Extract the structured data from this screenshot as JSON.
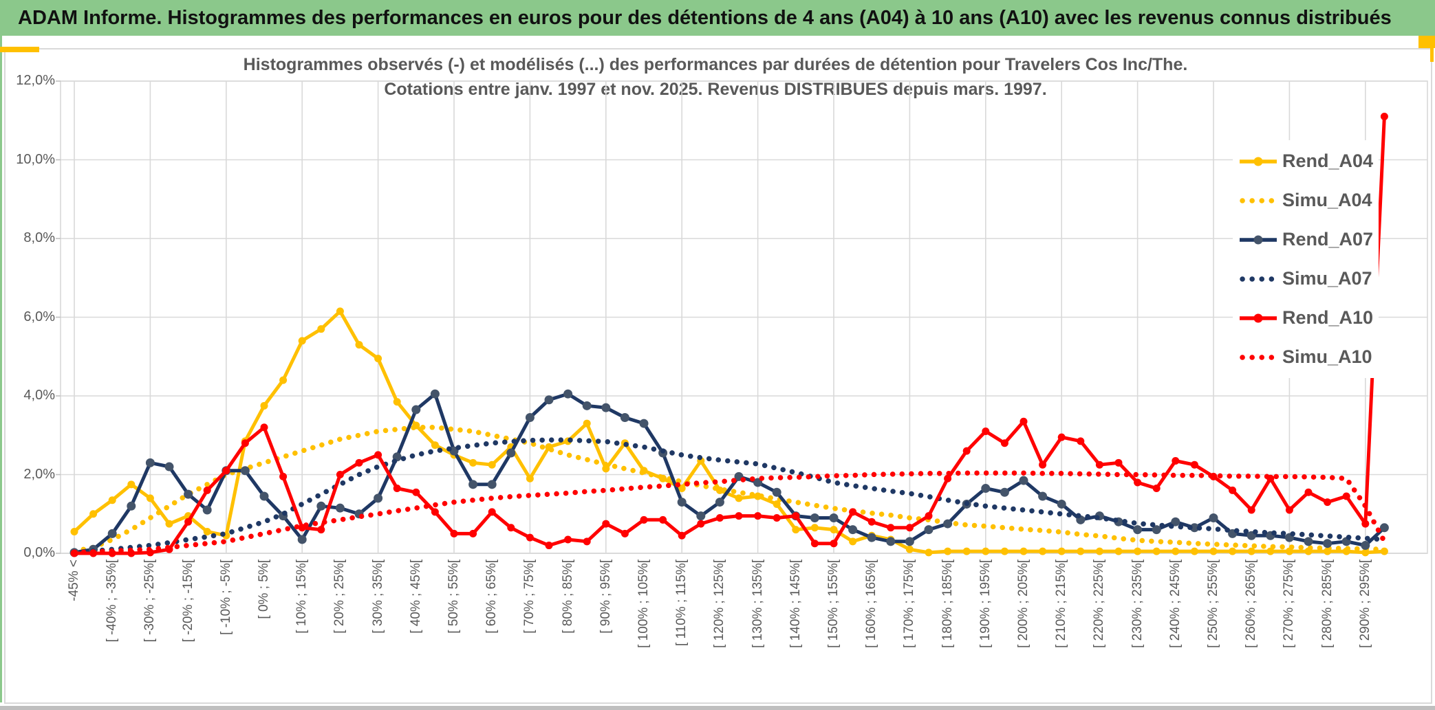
{
  "window": {
    "header_title": "ADAM Informe. Histogrammes des performances en euros pour des détentions de 4 ans (A04) à 10 ans (A10) avec les revenus connus distribués"
  },
  "theme": {
    "header_bg": "#8BC88B",
    "accent_gold": "#FFC000",
    "text_gray": "#595959",
    "grid_color": "#D9D9D9",
    "axis_color": "#BFBFBF",
    "legend_bg": "#FFFFFF"
  },
  "chart_data": {
    "type": "line",
    "title_line1": "Histogrammes observés (-) et modélisés (...) des performances par durées de détention pour Travelers Cos Inc/The.",
    "title_line2": "Cotations entre janv. 1997 et nov. 2025. Revenus DISTRIBUES depuis mars. 1997.",
    "grid": true,
    "legend_position": "right-inside",
    "ylim": [
      0,
      12
    ],
    "ytick_labels": [
      "0,0%",
      "2,0%",
      "4,0%",
      "6,0%",
      "8,0%",
      "10,0%",
      "12,0%"
    ],
    "n_bins": 70,
    "label_every": 2,
    "categories": [
      "-45% <",
      "[ -40% ; -35%[",
      "[ -30% ; -25%[",
      "[ -20% ; -15%[",
      "[ -10% ; -5%[",
      "[ 0% ; 5%[",
      "[ 10% ; 15%[",
      "[ 20% ; 25%[",
      "[ 30% ; 35%[",
      "[ 40% ; 45%[",
      "[ 50% ; 55%[",
      "[ 60% ; 65%[",
      "[ 70% ; 75%[",
      "[ 80% ; 85%[",
      "[ 90% ; 95%[",
      "[ 100% ; 105%[",
      "[ 110% ; 115%[",
      "[ 120% ; 125%[",
      "[ 130% ; 135%[",
      "[ 140% ; 145%[",
      "[ 150% ; 155%[",
      "[ 160% ; 165%[",
      "[ 170% ; 175%[",
      "[ 180% ; 185%[",
      "[ 190% ; 195%[",
      "[ 200% ; 205%[",
      "[ 210% ; 215%[",
      "[ 220% ; 225%[",
      "[ 230% ; 235%[",
      "[ 240% ; 245%[",
      "[ 250% ; 255%[",
      "[ 260% ; 265%[",
      "[ 270% ; 275%[",
      "[ 280% ; 285%[",
      "[ 290% ; 295%["
    ],
    "series": [
      {
        "name": "Rend_A04",
        "style": "solid",
        "color": "#FFC000",
        "marker_color": "#FFC000",
        "values": [
          0.55,
          1.0,
          1.35,
          1.75,
          1.4,
          0.75,
          0.95,
          0.55,
          0.45,
          2.85,
          3.75,
          4.4,
          5.4,
          5.7,
          6.15,
          5.3,
          4.95,
          3.85,
          3.25,
          2.75,
          2.5,
          2.3,
          2.25,
          2.7,
          1.9,
          2.7,
          2.85,
          3.3,
          2.15,
          2.8,
          2.1,
          1.9,
          1.65,
          2.35,
          1.6,
          1.4,
          1.45,
          1.25,
          0.6,
          0.65,
          0.6,
          0.3,
          0.45,
          0.35,
          0.1,
          0.02,
          0.05,
          0.05,
          0.05,
          0.05,
          0.05,
          0.05,
          0.05,
          0.05,
          0.05,
          0.05,
          0.05,
          0.05,
          0.05,
          0.05,
          0.05,
          0.05,
          0.05,
          0.05,
          0.05,
          0.05,
          0.05,
          0.05,
          0.02,
          0.05
        ]
      },
      {
        "name": "Simu_A04",
        "style": "dotted",
        "color": "#FFC000",
        "values": [
          0.05,
          0.15,
          0.35,
          0.6,
          0.9,
          1.2,
          1.5,
          1.75,
          2.0,
          2.15,
          2.3,
          2.45,
          2.6,
          2.75,
          2.9,
          3.0,
          3.1,
          3.15,
          3.2,
          3.2,
          3.15,
          3.1,
          3.0,
          2.9,
          2.8,
          2.65,
          2.5,
          2.38,
          2.26,
          2.15,
          2.04,
          1.93,
          1.82,
          1.72,
          1.63,
          1.55,
          1.47,
          1.38,
          1.3,
          1.22,
          1.14,
          1.08,
          1.02,
          0.97,
          0.9,
          0.85,
          0.78,
          0.72,
          0.69,
          0.65,
          0.61,
          0.58,
          0.54,
          0.48,
          0.44,
          0.38,
          0.33,
          0.3,
          0.28,
          0.25,
          0.23,
          0.21,
          0.19,
          0.17,
          0.16,
          0.14,
          0.13,
          0.12,
          0.11,
          0.1
        ]
      },
      {
        "name": "Rend_A07",
        "style": "solid",
        "color": "#1F3864",
        "marker_color": "#44546A",
        "values": [
          0.02,
          0.1,
          0.5,
          1.2,
          2.3,
          2.2,
          1.5,
          1.1,
          2.1,
          2.1,
          1.45,
          0.95,
          0.35,
          1.2,
          1.15,
          1.0,
          1.4,
          2.45,
          3.65,
          4.05,
          2.6,
          1.75,
          1.75,
          2.55,
          3.45,
          3.9,
          4.05,
          3.75,
          3.7,
          3.45,
          3.3,
          2.55,
          1.3,
          0.95,
          1.3,
          1.95,
          1.8,
          1.55,
          0.95,
          0.9,
          0.9,
          0.6,
          0.4,
          0.3,
          0.3,
          0.6,
          0.75,
          1.25,
          1.65,
          1.55,
          1.85,
          1.45,
          1.25,
          0.85,
          0.95,
          0.8,
          0.6,
          0.6,
          0.8,
          0.65,
          0.9,
          0.5,
          0.45,
          0.45,
          0.4,
          0.3,
          0.25,
          0.3,
          0.2,
          0.65
        ]
      },
      {
        "name": "Simu_A07",
        "style": "dotted",
        "color": "#1F3864",
        "values": [
          0.02,
          0.06,
          0.1,
          0.15,
          0.2,
          0.27,
          0.35,
          0.42,
          0.5,
          0.65,
          0.8,
          1.0,
          1.25,
          1.5,
          1.75,
          2.0,
          2.2,
          2.36,
          2.5,
          2.6,
          2.67,
          2.74,
          2.8,
          2.84,
          2.87,
          2.88,
          2.88,
          2.86,
          2.84,
          2.77,
          2.7,
          2.6,
          2.5,
          2.43,
          2.37,
          2.32,
          2.27,
          2.16,
          2.05,
          1.93,
          1.8,
          1.72,
          1.65,
          1.58,
          1.52,
          1.44,
          1.35,
          1.27,
          1.2,
          1.15,
          1.1,
          1.05,
          1.0,
          0.95,
          0.9,
          0.83,
          0.76,
          0.72,
          0.68,
          0.65,
          0.62,
          0.58,
          0.55,
          0.52,
          0.5,
          0.47,
          0.44,
          0.41,
          0.38,
          0.35
        ]
      },
      {
        "name": "Rend_A10",
        "style": "solid",
        "color": "#FF0000",
        "marker_color": "#FF0000",
        "values": [
          0,
          0,
          0,
          0,
          0.02,
          0.1,
          0.8,
          1.6,
          2.1,
          2.8,
          3.2,
          1.95,
          0.65,
          0.6,
          2.0,
          2.3,
          2.5,
          1.65,
          1.55,
          1.05,
          0.5,
          0.5,
          1.05,
          0.65,
          0.4,
          0.2,
          0.35,
          0.3,
          0.75,
          0.5,
          0.85,
          0.85,
          0.45,
          0.75,
          0.9,
          0.95,
          0.95,
          0.9,
          0.95,
          0.25,
          0.25,
          1.05,
          0.8,
          0.65,
          0.65,
          0.95,
          1.9,
          2.6,
          3.1,
          2.8,
          3.35,
          2.25,
          2.95,
          2.85,
          2.25,
          2.3,
          1.8,
          1.65,
          2.35,
          2.25,
          1.95,
          1.6,
          1.1,
          1.9,
          1.1,
          1.55,
          1.3,
          1.45,
          0.75,
          11.1
        ]
      },
      {
        "name": "Simu_A10",
        "style": "dotted",
        "color": "#FF0000",
        "values": [
          0.02,
          0.04,
          0.06,
          0.08,
          0.1,
          0.15,
          0.2,
          0.25,
          0.3,
          0.4,
          0.5,
          0.6,
          0.7,
          0.78,
          0.85,
          0.93,
          1.0,
          1.08,
          1.15,
          1.23,
          1.3,
          1.35,
          1.4,
          1.44,
          1.47,
          1.5,
          1.53,
          1.57,
          1.6,
          1.64,
          1.68,
          1.71,
          1.75,
          1.79,
          1.82,
          1.86,
          1.9,
          1.92,
          1.93,
          1.95,
          1.97,
          1.98,
          2.0,
          2.01,
          2.02,
          2.03,
          2.03,
          2.04,
          2.04,
          2.04,
          2.04,
          2.03,
          2.03,
          2.02,
          2.01,
          2.0,
          2.0,
          1.99,
          1.98,
          1.98,
          1.97,
          1.96,
          1.96,
          1.95,
          1.95,
          1.94,
          1.93,
          1.9,
          1.2,
          0.3
        ]
      }
    ]
  }
}
